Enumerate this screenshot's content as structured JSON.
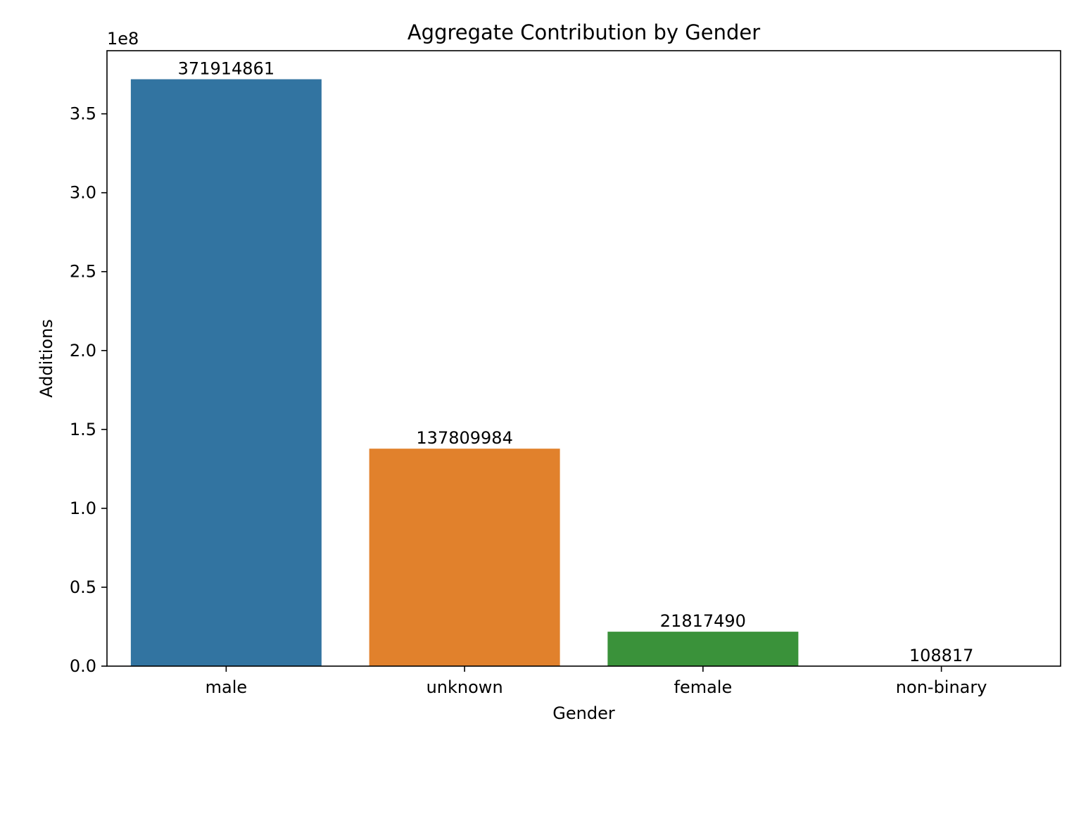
{
  "chart_data": {
    "type": "bar",
    "title": "Aggregate Contribution by Gender",
    "xlabel": "Gender",
    "ylabel": "Additions",
    "offset_text": "1e8",
    "categories": [
      "male",
      "unknown",
      "female",
      "non-binary"
    ],
    "values": [
      371914861,
      137809984,
      21817490,
      108817
    ],
    "bar_labels": [
      "371914861",
      "137809984",
      "21817490",
      "108817"
    ],
    "colors": [
      "#3274a1",
      "#e1812c",
      "#3a923a",
      "#c03d3e"
    ],
    "ylim": [
      0,
      390000000
    ],
    "yticks": [
      0,
      50000000,
      100000000,
      150000000,
      200000000,
      250000000,
      300000000,
      350000000
    ],
    "ytick_labels": [
      "0.0",
      "0.5",
      "1.0",
      "1.5",
      "2.0",
      "2.5",
      "3.0",
      "3.5"
    ],
    "grid": false,
    "legend": "none"
  }
}
